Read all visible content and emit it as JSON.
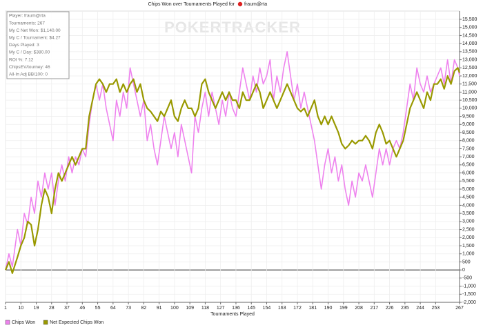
{
  "chart_data": {
    "type": "line",
    "title": "Chips Won over Tournaments Played for",
    "title_player": "fraum@rta",
    "watermark": "POKERTRACKER",
    "xlabel": "Tournaments Played",
    "info_lines": [
      "Player: fraum@rta",
      "Tournaments: 267",
      "My C Net Won: $1,140.00",
      "My C / Tournament: $4.27",
      "Days Played: 3",
      "My C / Day: $380.00",
      "ROI %: 7.12",
      "ChipsEV/tourney: 46",
      "All-In Adj BB/100: 0"
    ],
    "grid": true,
    "legend": "bottom-left",
    "xlim": [
      1,
      267
    ],
    "xticks": [
      1,
      10,
      19,
      28,
      37,
      46,
      55,
      64,
      73,
      82,
      91,
      100,
      109,
      118,
      127,
      136,
      145,
      154,
      163,
      172,
      181,
      190,
      199,
      208,
      217,
      226,
      235,
      244,
      253,
      267
    ],
    "ylim": [
      -2000,
      15500
    ],
    "yticks": [
      {
        "value": -2000,
        "label": "-2,000"
      },
      {
        "value": -1500,
        "label": "-1,500"
      },
      {
        "value": -1000,
        "label": "-1,000"
      },
      -500,
      0,
      500,
      {
        "value": 1000,
        "label": "1,000"
      },
      {
        "value": 1500,
        "label": "1,500"
      },
      {
        "value": 2000,
        "label": "2,000"
      },
      {
        "value": 2500,
        "label": "2,500"
      },
      {
        "value": 3000,
        "label": "3,000"
      },
      {
        "value": 3500,
        "label": "3,500"
      },
      {
        "value": 4000,
        "label": "4,000"
      },
      {
        "value": 4500,
        "label": "4,500"
      },
      {
        "value": 5000,
        "label": "5,000"
      },
      {
        "value": 5500,
        "label": "5,500"
      },
      {
        "value": 6000,
        "label": "6,000"
      },
      {
        "value": 6500,
        "label": "6,500"
      },
      {
        "value": 7000,
        "label": "7,000"
      },
      {
        "value": 7500,
        "label": "7,500"
      },
      {
        "value": 8000,
        "label": "8,000"
      },
      {
        "value": 8500,
        "label": "8,500"
      },
      {
        "value": 9000,
        "label": "9,000"
      },
      {
        "value": 9500,
        "label": "9,500"
      },
      {
        "value": 10000,
        "label": "10,000"
      },
      {
        "value": 10500,
        "label": "10,500"
      },
      {
        "value": 11000,
        "label": "11,000"
      },
      {
        "value": 11500,
        "label": "11,500"
      },
      {
        "value": 12000,
        "label": "12,000"
      },
      {
        "value": 12500,
        "label": "12,500"
      },
      {
        "value": 13000,
        "label": "13,000"
      },
      {
        "value": 13500,
        "label": "13,500"
      },
      {
        "value": 14000,
        "label": "14,000"
      },
      {
        "value": 14500,
        "label": "14,500"
      },
      {
        "value": 15000,
        "label": "15,000"
      },
      {
        "value": 15500,
        "label": "15,500"
      }
    ],
    "x": [
      1,
      3,
      5,
      8,
      10,
      12,
      14,
      16,
      18,
      20,
      22,
      24,
      26,
      28,
      30,
      32,
      34,
      36,
      38,
      40,
      42,
      44,
      46,
      48,
      50,
      52,
      54,
      56,
      58,
      60,
      62,
      64,
      66,
      68,
      70,
      72,
      74,
      76,
      78,
      80,
      82,
      84,
      86,
      88,
      90,
      92,
      94,
      96,
      98,
      100,
      102,
      104,
      106,
      108,
      110,
      112,
      114,
      116,
      118,
      120,
      122,
      124,
      126,
      128,
      130,
      132,
      134,
      136,
      138,
      140,
      142,
      144,
      146,
      148,
      150,
      152,
      154,
      156,
      158,
      160,
      162,
      164,
      166,
      168,
      170,
      172,
      174,
      176,
      178,
      180,
      182,
      184,
      186,
      188,
      190,
      192,
      194,
      196,
      198,
      200,
      202,
      204,
      206,
      208,
      210,
      212,
      214,
      216,
      218,
      220,
      222,
      224,
      226,
      228,
      230,
      232,
      234,
      236,
      238,
      240,
      242,
      244,
      246,
      248,
      250,
      252,
      254,
      256,
      258,
      260,
      262,
      264,
      266,
      267
    ],
    "series": [
      {
        "name": "Chips Won",
        "color": "#ee82ee",
        "values": [
          0,
          1000,
          200,
          2500,
          1500,
          3500,
          2800,
          4500,
          3500,
          5500,
          4500,
          6000,
          5000,
          6000,
          4000,
          5500,
          6500,
          5500,
          7000,
          6000,
          7000,
          6500,
          7500,
          7000,
          9000,
          10500,
          11500,
          10500,
          11500,
          10000,
          9000,
          8000,
          10500,
          9500,
          11000,
          10000,
          12500,
          11500,
          10500,
          9500,
          10500,
          8000,
          9000,
          7500,
          6500,
          8000,
          9500,
          8500,
          7500,
          8500,
          7000,
          9000,
          8000,
          7000,
          6000,
          9500,
          8500,
          10000,
          11000,
          9500,
          11000,
          10000,
          9000,
          10500,
          9500,
          11000,
          10000,
          9500,
          11000,
          12500,
          11500,
          10500,
          12000,
          11000,
          12500,
          11500,
          12000,
          13000,
          10500,
          12000,
          11000,
          12500,
          13500,
          12000,
          10500,
          11500,
          10000,
          11000,
          10000,
          9000,
          8000,
          6500,
          5000,
          6500,
          7500,
          6000,
          7000,
          5500,
          6500,
          5000,
          4000,
          5500,
          4500,
          6000,
          5500,
          6500,
          5500,
          4500,
          6000,
          7500,
          6500,
          7500,
          6500,
          7500,
          8000,
          7500,
          8500,
          10000,
          11500,
          10500,
          12500,
          11500,
          11000,
          12000,
          11000,
          11500,
          12000,
          12500,
          11500,
          13000,
          11500,
          13000,
          12500,
          12000
        ]
      },
      {
        "name": "Net Expected Chips Won",
        "color": "#999900",
        "values": [
          0,
          500,
          -200,
          800,
          1500,
          2000,
          3000,
          2800,
          1500,
          2500,
          4000,
          5000,
          4500,
          3500,
          5000,
          6000,
          5500,
          6000,
          6500,
          7000,
          6500,
          7000,
          7500,
          7500,
          9500,
          10500,
          11500,
          11800,
          11500,
          11000,
          11500,
          11500,
          11800,
          11000,
          11500,
          11000,
          11500,
          11800,
          11000,
          11500,
          10500,
          10000,
          9800,
          9500,
          9200,
          9800,
          9500,
          10000,
          10500,
          9500,
          9200,
          10000,
          10500,
          10000,
          10000,
          9500,
          10000,
          11500,
          11800,
          11000,
          10500,
          10000,
          10500,
          11000,
          10500,
          11000,
          10500,
          10500,
          10000,
          11000,
          10500,
          10500,
          11000,
          11500,
          11000,
          10000,
          10500,
          11000,
          10500,
          10000,
          10500,
          11000,
          11500,
          11000,
          10500,
          10000,
          9800,
          10000,
          9500,
          10000,
          10500,
          9500,
          9000,
          9500,
          9000,
          9500,
          9000,
          8500,
          7800,
          7500,
          7700,
          8000,
          7800,
          8000,
          8000,
          8300,
          8000,
          7500,
          8500,
          9000,
          8500,
          7800,
          8000,
          7500,
          7000,
          7500,
          8000,
          9000,
          10000,
          10500,
          11000,
          10500,
          10000,
          11000,
          10500,
          11500,
          11500,
          11800,
          11200,
          12000,
          11500,
          12300,
          12500,
          12200
        ]
      }
    ]
  }
}
